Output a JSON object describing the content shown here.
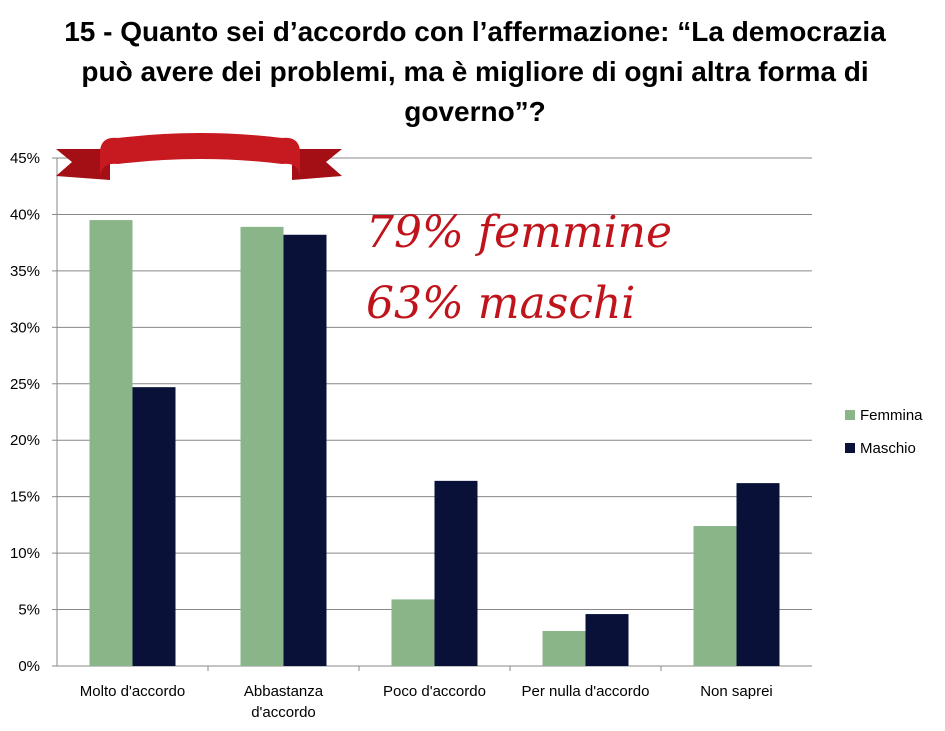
{
  "title": "15 - Quanto sei d’accordo con l’affermazione: “La democrazia può avere dei problemi, ma è migliore di ogni altra forma di governo”?",
  "annotations": [
    "79%  femmine",
    "63%  maschi"
  ],
  "colors": {
    "femmina": "#8ab589",
    "maschio": "#0a1138",
    "accent": "#c0141c"
  },
  "chart_data": {
    "type": "bar",
    "title": "15 - Quanto sei d’accordo con l’affermazione: “La democrazia può avere dei problemi, ma è migliore di ogni altra forma di governo”?",
    "categories": [
      [
        "Molto d'accordo"
      ],
      [
        "Abbastanza",
        "d'accordo"
      ],
      [
        "Poco d'accordo"
      ],
      [
        "Per nulla d'accordo"
      ],
      [
        "Non saprei"
      ]
    ],
    "series": [
      {
        "name": "Femmina",
        "values": [
          39.5,
          38.9,
          5.9,
          3.1,
          12.4
        ]
      },
      {
        "name": "Maschio",
        "values": [
          24.7,
          38.2,
          16.4,
          4.6,
          16.2
        ]
      }
    ],
    "yticks": [
      "0%",
      "5%",
      "10%",
      "15%",
      "20%",
      "25%",
      "30%",
      "35%",
      "40%",
      "45%"
    ],
    "ylim": [
      0,
      45
    ],
    "grid": true,
    "legend": "right"
  }
}
